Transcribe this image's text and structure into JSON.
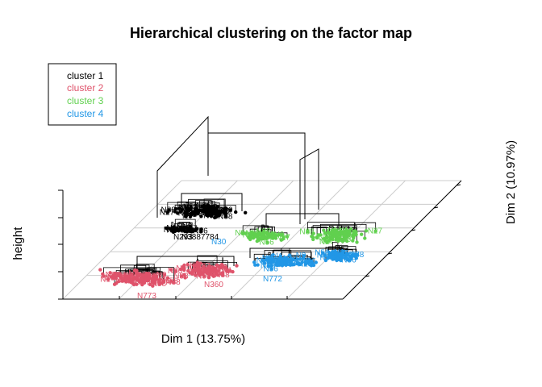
{
  "chart_data": {
    "type": "scatter",
    "title": "Hierarchical clustering on the factor map",
    "xlabel": "Dim 1 (13.75%)",
    "ylabel": "Dim 2 (10.97%)",
    "zlabel": "height",
    "legend": {
      "position": "top-left",
      "entries": [
        {
          "label": "cluster 1",
          "color": "#000000"
        },
        {
          "label": "cluster 2",
          "color": "#DF536B"
        },
        {
          "label": "cluster 3",
          "color": "#61D04F"
        },
        {
          "label": "cluster 4",
          "color": "#2297E6"
        }
      ]
    },
    "grid": true,
    "visible_point_labels": [
      {
        "text": "N293",
        "cluster": "cluster 1"
      },
      {
        "text": "N3887784",
        "cluster": "cluster 1"
      },
      {
        "text": "N30",
        "cluster": "cluster 4"
      },
      {
        "text": "N772",
        "cluster": "cluster 4"
      },
      {
        "text": "N773",
        "cluster": "cluster 2"
      },
      {
        "text": "N360",
        "cluster": "cluster 2"
      }
    ]
  }
}
